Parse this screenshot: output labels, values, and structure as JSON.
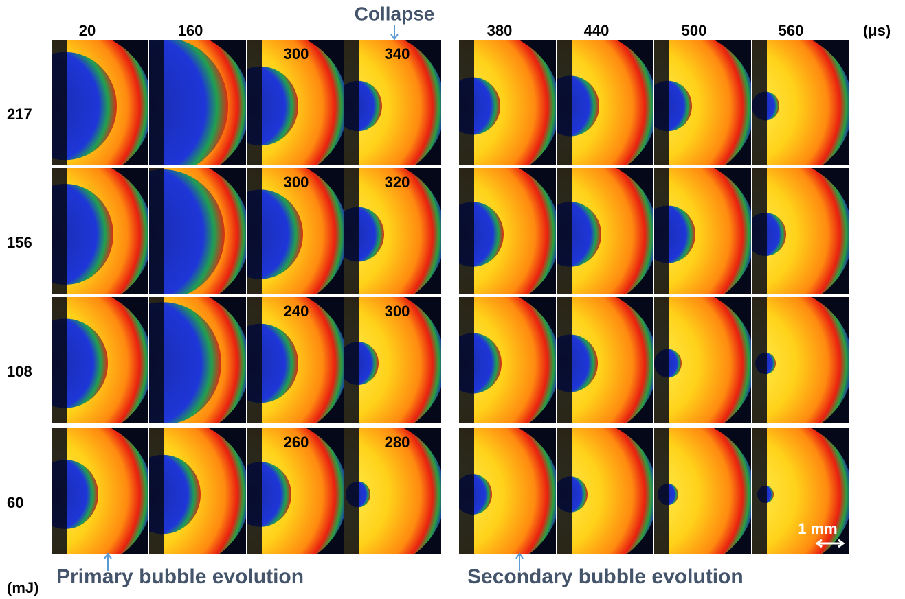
{
  "header": {
    "times": [
      "20",
      "160",
      "380",
      "440",
      "500",
      "560"
    ],
    "time_unit": "(μs)",
    "collapse_label": "Collapse"
  },
  "rows": [
    {
      "energy": "217",
      "labels": [
        "300",
        "340"
      ]
    },
    {
      "energy": "156",
      "labels": [
        "300",
        "320"
      ]
    },
    {
      "energy": "108",
      "labels": [
        "240",
        "300"
      ]
    },
    {
      "energy": "60",
      "labels": [
        "260",
        "280"
      ]
    }
  ],
  "energy_unit": "(mJ)",
  "annotations": {
    "primary": "Primary bubble evolution",
    "secondary": "Secondary bubble evolution",
    "scale_bar": "1 mm"
  }
}
